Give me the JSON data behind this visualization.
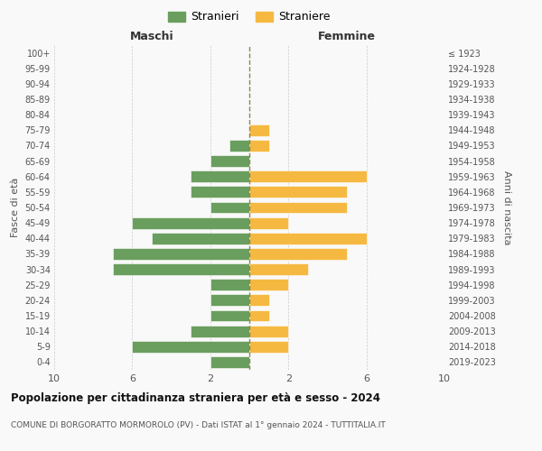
{
  "age_groups": [
    "0-4",
    "5-9",
    "10-14",
    "15-19",
    "20-24",
    "25-29",
    "30-34",
    "35-39",
    "40-44",
    "45-49",
    "50-54",
    "55-59",
    "60-64",
    "65-69",
    "70-74",
    "75-79",
    "80-84",
    "85-89",
    "90-94",
    "95-99",
    "100+"
  ],
  "birth_years": [
    "2019-2023",
    "2014-2018",
    "2009-2013",
    "2004-2008",
    "1999-2003",
    "1994-1998",
    "1989-1993",
    "1984-1988",
    "1979-1983",
    "1974-1978",
    "1969-1973",
    "1964-1968",
    "1959-1963",
    "1954-1958",
    "1949-1953",
    "1944-1948",
    "1939-1943",
    "1934-1938",
    "1929-1933",
    "1924-1928",
    "≤ 1923"
  ],
  "maschi": [
    2,
    6,
    3,
    2,
    2,
    2,
    7,
    7,
    5,
    6,
    2,
    3,
    3,
    2,
    1,
    0,
    0,
    0,
    0,
    0,
    0
  ],
  "femmine": [
    0,
    2,
    2,
    1,
    1,
    2,
    3,
    5,
    6,
    2,
    5,
    5,
    6,
    0,
    1,
    1,
    0,
    0,
    0,
    0,
    0
  ],
  "color_maschi": "#6a9e5e",
  "color_femmine": "#f5b942",
  "title": "Popolazione per cittadinanza straniera per età e sesso - 2024",
  "subtitle": "COMUNE DI BORGORATTO MORMOROLO (PV) - Dati ISTAT al 1° gennaio 2024 - TUTTITALIA.IT",
  "xlabel_left": "Maschi",
  "xlabel_right": "Femmine",
  "ylabel_left": "Fasce di età",
  "ylabel_right": "Anni di nascita",
  "legend_maschi": "Stranieri",
  "legend_femmine": "Straniere",
  "xlim": 10,
  "bg_color": "#f9f9f9",
  "grid_color": "#cccccc"
}
